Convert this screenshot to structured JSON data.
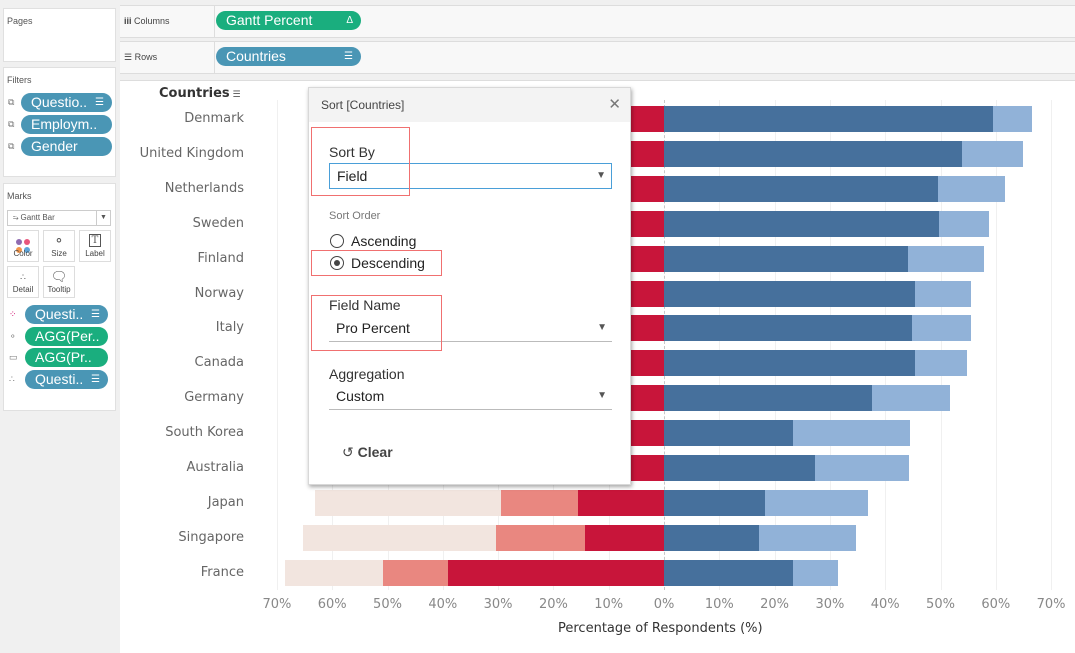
{
  "shelves": {
    "pages_label": "Pages",
    "filters_label": "Filters",
    "marks_label": "Marks",
    "columns_label": "Columns",
    "rows_label": "Rows",
    "columns_pill": "Gantt Percent",
    "rows_pill": "Countries"
  },
  "filters": [
    "Questio..",
    "Employm..",
    "Gender"
  ],
  "marks": {
    "type": "Gantt Bar",
    "buttons": [
      "Color",
      "Size",
      "Label",
      "Detail",
      "Tooltip"
    ],
    "pills": [
      {
        "label": "Questi..",
        "kind": "color"
      },
      {
        "label": "AGG(Per..",
        "kind": "size"
      },
      {
        "label": "AGG(Pr..",
        "kind": "tooltip"
      },
      {
        "label": "Questi..",
        "kind": "detail"
      }
    ]
  },
  "dialog": {
    "title": "Sort [Countries]",
    "sort_by_label": "Sort By",
    "sort_by_value": "Field",
    "sort_order_label": "Sort Order",
    "ascending_label": "Ascending",
    "descending_label": "Descending",
    "selected_order": "Descending",
    "field_name_label": "Field Name",
    "field_name_value": "Pro Percent",
    "aggregation_label": "Aggregation",
    "aggregation_value": "Custom",
    "clear_label": "Clear"
  },
  "chart_data": {
    "type": "bar",
    "subtype": "diverging-stacked-gantt",
    "rows_header": "Countries",
    "xlabel": "Percentage of Respondents (%)",
    "xlim": [
      -70,
      70
    ],
    "x_ticks": [
      "70%",
      "60%",
      "50%",
      "40%",
      "30%",
      "20%",
      "10%",
      "0%",
      "10%",
      "20%",
      "30%",
      "40%",
      "50%",
      "60%",
      "70%"
    ],
    "grid": true,
    "colors": {
      "pro_strong": "#46709c",
      "pro_weak": "#91b2d8",
      "con_strong": "#c8153a",
      "con_weak": "#e98780",
      "neutral": "#f2e5df"
    },
    "categories": [
      "Denmark",
      "United Kingdom",
      "Netherlands",
      "Sweden",
      "Finland",
      "Norway",
      "Italy",
      "Canada",
      "Germany",
      "South Korea",
      "Australia",
      "Japan",
      "Singapore",
      "France"
    ],
    "series": [
      {
        "name": "pro_strong",
        "side": "right",
        "values": [
          59.5,
          53.9,
          49.5,
          49.7,
          44.1,
          45.4,
          44.8,
          45.4,
          37.6,
          23.3,
          27.3,
          18.3,
          17.2,
          23.3
        ]
      },
      {
        "name": "pro_weak",
        "side": "right",
        "values": [
          7.0,
          11.0,
          12.2,
          9.1,
          13.8,
          10.1,
          10.7,
          9.4,
          14.1,
          21.2,
          17.0,
          18.6,
          17.5,
          8.2
        ]
      },
      {
        "name": "con_strong",
        "side": "left",
        "values": [
          null,
          null,
          null,
          null,
          null,
          null,
          null,
          null,
          null,
          null,
          null,
          15.6,
          14.3,
          39.1
        ]
      },
      {
        "name": "con_weak",
        "side": "left",
        "values": [
          null,
          null,
          null,
          null,
          null,
          null,
          null,
          null,
          null,
          null,
          null,
          13.9,
          16.1,
          11.7
        ]
      },
      {
        "name": "neutral",
        "side": "left",
        "values": [
          null,
          null,
          null,
          null,
          null,
          null,
          null,
          null,
          null,
          null,
          null,
          33.6,
          34.9,
          17.7
        ]
      }
    ],
    "note": "Left-side values for the first 11 rows are hidden behind the Sort dialog; only the red segment edge is visible."
  }
}
